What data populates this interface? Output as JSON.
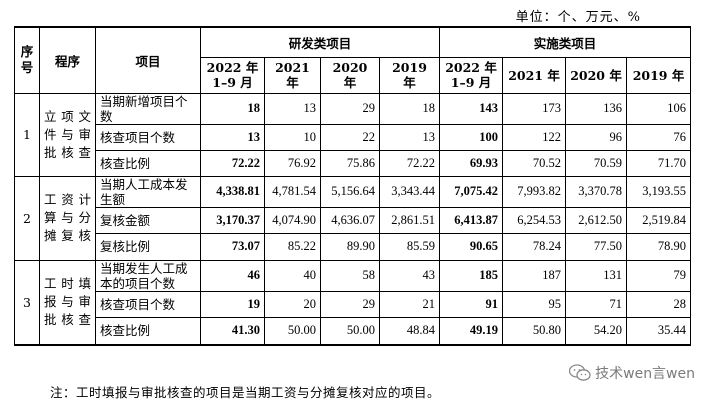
{
  "unit_label": "单位：个、万元、%",
  "header": {
    "seq": "序号",
    "procedure": "程序",
    "item": "项目",
    "group_rd": "研发类项目",
    "group_impl": "实施类项目",
    "years": [
      "2022 年\n1–9 月",
      "2021 年",
      "2020 年",
      "2019 年"
    ]
  },
  "sections": [
    {
      "seq": "1",
      "procedure": "立项文件与审批核查",
      "rows": [
        {
          "item": "当期新增项目个数",
          "rd": [
            "18",
            "13",
            "29",
            "18"
          ],
          "impl": [
            "143",
            "173",
            "136",
            "106"
          ]
        },
        {
          "item": "核查项目个数",
          "rd": [
            "13",
            "10",
            "22",
            "13"
          ],
          "impl": [
            "100",
            "122",
            "96",
            "76"
          ]
        },
        {
          "item": "核查比例",
          "rd": [
            "72.22",
            "76.92",
            "75.86",
            "72.22"
          ],
          "impl": [
            "69.93",
            "70.52",
            "70.59",
            "71.70"
          ]
        }
      ]
    },
    {
      "seq": "2",
      "procedure": "工资计算与分摊复核",
      "rows": [
        {
          "item": "当期人工成本发生额",
          "rd": [
            "4,338.81",
            "4,781.54",
            "5,156.64",
            "3,343.44"
          ],
          "impl": [
            "7,075.42",
            "7,993.82",
            "3,370.78",
            "3,193.55"
          ]
        },
        {
          "item": "复核金额",
          "rd": [
            "3,170.37",
            "4,074.90",
            "4,636.07",
            "2,861.51"
          ],
          "impl": [
            "6,413.87",
            "6,254.53",
            "2,612.50",
            "2,519.84"
          ]
        },
        {
          "item": "复核比例",
          "rd": [
            "73.07",
            "85.22",
            "89.90",
            "85.59"
          ],
          "impl": [
            "90.65",
            "78.24",
            "77.50",
            "78.90"
          ]
        }
      ]
    },
    {
      "seq": "3",
      "procedure": "工时填报与审批核查",
      "rows": [
        {
          "item": "当期发生人工成本的项目个数",
          "rd": [
            "46",
            "40",
            "58",
            "43"
          ],
          "impl": [
            "185",
            "187",
            "131",
            "79"
          ]
        },
        {
          "item": "核查项目个数",
          "rd": [
            "19",
            "20",
            "29",
            "21"
          ],
          "impl": [
            "91",
            "95",
            "71",
            "28"
          ]
        },
        {
          "item": "核查比例",
          "rd": [
            "41.30",
            "50.00",
            "50.00",
            "48.84"
          ],
          "impl": [
            "49.19",
            "50.80",
            "54.20",
            "35.44"
          ]
        }
      ]
    }
  ],
  "note": "注：工时填报与审批核查的项目是当期工资与分摊复核对应的项目。",
  "watermark": {
    "text": "技术wen言wen",
    "icon": "wechat-icon",
    "color": "#7a7a7a"
  }
}
